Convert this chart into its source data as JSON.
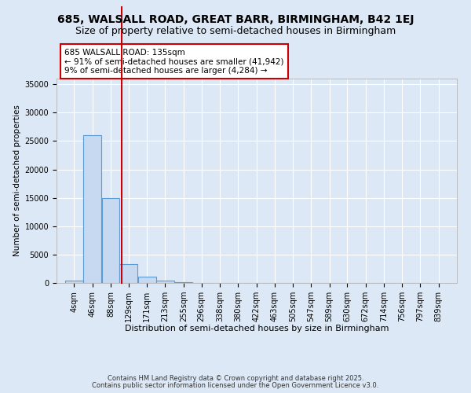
{
  "title1": "685, WALSALL ROAD, GREAT BARR, BIRMINGHAM, B42 1EJ",
  "title2": "Size of property relative to semi-detached houses in Birmingham",
  "xlabel": "Distribution of semi-detached houses by size in Birmingham",
  "ylabel": "Number of semi-detached properties",
  "bin_labels": [
    "4sqm",
    "46sqm",
    "88sqm",
    "129sqm",
    "171sqm",
    "213sqm",
    "255sqm",
    "296sqm",
    "338sqm",
    "380sqm",
    "422sqm",
    "463sqm",
    "505sqm",
    "547sqm",
    "589sqm",
    "630sqm",
    "672sqm",
    "714sqm",
    "756sqm",
    "797sqm",
    "839sqm"
  ],
  "bin_edges": [
    4,
    46,
    88,
    129,
    171,
    213,
    255,
    296,
    338,
    380,
    422,
    463,
    505,
    547,
    589,
    630,
    672,
    714,
    756,
    797,
    839
  ],
  "bar_heights": [
    400,
    26000,
    15000,
    3300,
    1100,
    400,
    200,
    50,
    20,
    10,
    5,
    3,
    2,
    1,
    1,
    0,
    0,
    0,
    0,
    0
  ],
  "bar_color": "#c6d9f0",
  "bar_edge_color": "#5b9bd5",
  "property_size": 135,
  "red_line_color": "#cc0000",
  "annotation_line1": "685 WALSALL ROAD: 135sqm",
  "annotation_line2": "← 91% of semi-detached houses are smaller (41,942)",
  "annotation_line3": "9% of semi-detached houses are larger (4,284) →",
  "annotation_box_color": "#ffffff",
  "annotation_box_edge": "#cc0000",
  "ylim": [
    0,
    36000
  ],
  "yticks": [
    0,
    5000,
    10000,
    15000,
    20000,
    25000,
    30000,
    35000
  ],
  "footer1": "Contains HM Land Registry data © Crown copyright and database right 2025.",
  "footer2": "Contains public sector information licensed under the Open Government Licence v3.0.",
  "background_color": "#dce8f5",
  "grid_color": "#ffffff",
  "title1_fontsize": 10,
  "title2_fontsize": 9,
  "annotation_fontsize": 7.5,
  "ylabel_fontsize": 7.5,
  "xlabel_fontsize": 8,
  "tick_fontsize": 7,
  "footer_fontsize": 6
}
